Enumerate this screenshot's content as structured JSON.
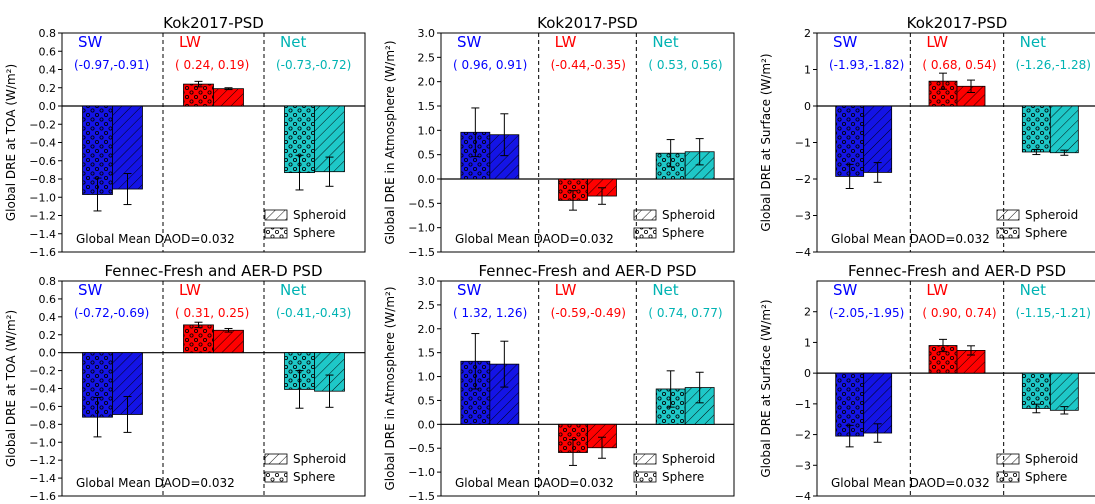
{
  "figure": {
    "legend": {
      "spheroid_label": "Spheroid",
      "sphere_label": "Sphere"
    },
    "colors": {
      "sw": "#1414e6",
      "lw": "#ff0000",
      "net": "#1ec8c8",
      "sw_text": "#0000ff",
      "lw_text": "#ff0000",
      "net_text": "#00b3b3"
    }
  },
  "chart_data": [
    {
      "type": "bar",
      "title": "Kok2017-PSD",
      "ylabel": "Global DRE at TOA (W/m²)",
      "ylim": [
        -1.6,
        0.8
      ],
      "yticks": [
        -1.6,
        -1.4,
        -1.2,
        -1.0,
        -0.8,
        -0.6,
        -0.4,
        -0.2,
        0.0,
        0.2,
        0.4,
        0.6,
        0.8
      ],
      "ytick_labels": [
        "−1.6",
        "−1.4",
        "−1.2",
        "−1.0",
        "−0.8",
        "−0.6",
        "−0.4",
        "−0.2",
        "0.0",
        "0.2",
        "0.4",
        "0.6",
        "0.8"
      ],
      "groups": [
        {
          "label": "SW",
          "values_text": "(-0.97,-0.91)",
          "sphere": -0.97,
          "spheroid": -0.91,
          "sphere_err": 0.18,
          "spheroid_err": 0.17
        },
        {
          "label": "LW",
          "values_text": "( 0.24, 0.19)",
          "sphere": 0.24,
          "spheroid": 0.19,
          "sphere_err": 0.03,
          "spheroid_err": 0.01
        },
        {
          "label": "Net",
          "values_text": "(-0.73,-0.72)",
          "sphere": -0.73,
          "spheroid": -0.72,
          "sphere_err": 0.19,
          "spheroid_err": 0.16
        }
      ],
      "annotation": "Global Mean DAOD=0.032"
    },
    {
      "type": "bar",
      "title": "Kok2017-PSD",
      "ylabel": "Global DRE in Atmosphere (W/m²)",
      "ylim": [
        -1.5,
        3.0
      ],
      "yticks": [
        -1.5,
        -1.0,
        -0.5,
        0.0,
        0.5,
        1.0,
        1.5,
        2.0,
        2.5,
        3.0
      ],
      "ytick_labels": [
        "−1.5",
        "−1.0",
        "−0.5",
        "0.0",
        "0.5",
        "1.0",
        "1.5",
        "2.0",
        "2.5",
        "3.0"
      ],
      "groups": [
        {
          "label": "SW",
          "values_text": "( 0.96, 0.91)",
          "sphere": 0.96,
          "spheroid": 0.91,
          "sphere_err": 0.5,
          "spheroid_err": 0.43
        },
        {
          "label": "LW",
          "values_text": "(-0.44,-0.35)",
          "sphere": -0.44,
          "spheroid": -0.35,
          "sphere_err": 0.2,
          "spheroid_err": 0.17
        },
        {
          "label": "Net",
          "values_text": "( 0.53, 0.56)",
          "sphere": 0.53,
          "spheroid": 0.56,
          "sphere_err": 0.28,
          "spheroid_err": 0.27
        }
      ],
      "annotation": "Global Mean DAOD=0.032"
    },
    {
      "type": "bar",
      "title": "Kok2017-PSD",
      "ylabel": "Global DRE at Surface (W/m²)",
      "ylim": [
        -4,
        2
      ],
      "yticks": [
        -4,
        -3,
        -2,
        -1,
        0,
        1,
        2
      ],
      "ytick_labels": [
        "−4",
        "−3",
        "−2",
        "−1",
        "0",
        "1",
        "2"
      ],
      "groups": [
        {
          "label": "SW",
          "values_text": "(-1.93,-1.82)",
          "sphere": -1.93,
          "spheroid": -1.82,
          "sphere_err": 0.33,
          "spheroid_err": 0.27
        },
        {
          "label": "LW",
          "values_text": "( 0.68, 0.54)",
          "sphere": 0.68,
          "spheroid": 0.54,
          "sphere_err": 0.22,
          "spheroid_err": 0.17
        },
        {
          "label": "Net",
          "values_text": "(-1.26,-1.28)",
          "sphere": -1.26,
          "spheroid": -1.28,
          "sphere_err": 0.07,
          "spheroid_err": 0.07
        }
      ],
      "annotation": "Global Mean DAOD=0.032"
    },
    {
      "type": "bar",
      "title": "Fennec-Fresh and AER-D PSD",
      "ylabel": "Global DRE at TOA (W/m²)",
      "ylim": [
        -1.6,
        0.8
      ],
      "yticks": [
        -1.6,
        -1.4,
        -1.2,
        -1.0,
        -0.8,
        -0.6,
        -0.4,
        -0.2,
        0.0,
        0.2,
        0.4,
        0.6,
        0.8
      ],
      "ytick_labels": [
        "−1.6",
        "−1.4",
        "−1.2",
        "−1.0",
        "−0.8",
        "−0.6",
        "−0.4",
        "−0.2",
        "0.0",
        "0.2",
        "0.4",
        "0.6",
        "0.8"
      ],
      "groups": [
        {
          "label": "SW",
          "values_text": "(-0.72,-0.69)",
          "sphere": -0.72,
          "spheroid": -0.69,
          "sphere_err": 0.22,
          "spheroid_err": 0.2
        },
        {
          "label": "LW",
          "values_text": "( 0.31, 0.25)",
          "sphere": 0.31,
          "spheroid": 0.25,
          "sphere_err": 0.03,
          "spheroid_err": 0.02
        },
        {
          "label": "Net",
          "values_text": "(-0.41,-0.43)",
          "sphere": -0.41,
          "spheroid": -0.43,
          "sphere_err": 0.21,
          "spheroid_err": 0.18
        }
      ],
      "annotation": "Global Mean DAOD=0.032"
    },
    {
      "type": "bar",
      "title": "Fennec-Fresh and AER-D PSD",
      "ylabel": "Global DRE in Atmosphere (W/m²)",
      "ylim": [
        -1.5,
        3.0
      ],
      "yticks": [
        -1.5,
        -1.0,
        -0.5,
        0.0,
        0.5,
        1.0,
        1.5,
        2.0,
        2.5,
        3.0
      ],
      "ytick_labels": [
        "−1.5",
        "−1.0",
        "−0.5",
        "0.0",
        "0.5",
        "1.0",
        "1.5",
        "2.0",
        "2.5",
        "3.0"
      ],
      "groups": [
        {
          "label": "SW",
          "values_text": "( 1.32, 1.26)",
          "sphere": 1.32,
          "spheroid": 1.26,
          "sphere_err": 0.58,
          "spheroid_err": 0.48
        },
        {
          "label": "LW",
          "values_text": "(-0.59,-0.49)",
          "sphere": -0.59,
          "spheroid": -0.49,
          "sphere_err": 0.27,
          "spheroid_err": 0.22
        },
        {
          "label": "Net",
          "values_text": "( 0.74, 0.77)",
          "sphere": 0.74,
          "spheroid": 0.77,
          "sphere_err": 0.38,
          "spheroid_err": 0.32
        }
      ],
      "annotation": "Global Mean DAOD=0.032"
    },
    {
      "type": "bar",
      "title": "Fennec-Fresh and AER-D PSD",
      "ylabel": "Global DRE at Surface (W/m²)",
      "ylim": [
        -4,
        3
      ],
      "yticks": [
        -4,
        -3,
        -2,
        -1,
        0,
        1,
        2
      ],
      "ytick_labels": [
        "−4",
        "−3",
        "−2",
        "−1",
        "0",
        "1",
        "2"
      ],
      "groups": [
        {
          "label": "SW",
          "values_text": "(-2.05,-1.95)",
          "sphere": -2.05,
          "spheroid": -1.95,
          "sphere_err": 0.35,
          "spheroid_err": 0.3
        },
        {
          "label": "LW",
          "values_text": "( 0.90, 0.74)",
          "sphere": 0.9,
          "spheroid": 0.74,
          "sphere_err": 0.2,
          "spheroid_err": 0.15
        },
        {
          "label": "Net",
          "values_text": "(-1.15,-1.21)",
          "sphere": -1.15,
          "spheroid": -1.21,
          "sphere_err": 0.14,
          "spheroid_err": 0.12
        }
      ],
      "annotation": "Global Mean DAOD=0.032"
    }
  ]
}
